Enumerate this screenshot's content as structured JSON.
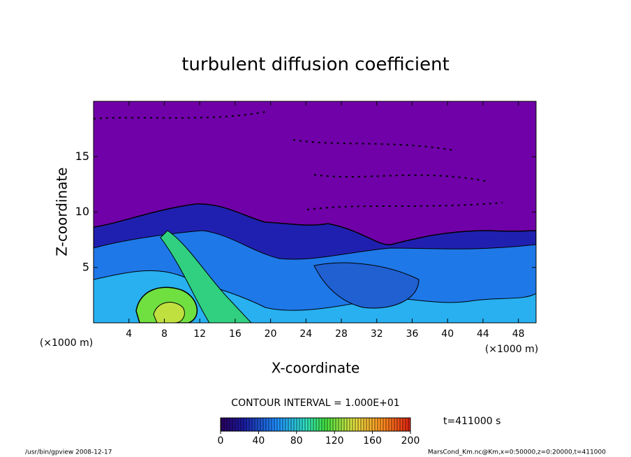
{
  "chart_data": {
    "type": "contour",
    "title": "turbulent diffusion coefficient",
    "x_label": "X-coordinate",
    "y_label": "Z-coordinate",
    "x_unit": "(×1000 m)",
    "xlim": [
      0,
      50
    ],
    "xticks": [
      4,
      8,
      12,
      16,
      20,
      24,
      28,
      32,
      36,
      40,
      44,
      48
    ],
    "ylim": [
      0,
      20
    ],
    "yticks": [
      5,
      10,
      15
    ],
    "contour_interval": "CONTOUR INTERVAL = 1.000E+01",
    "colorbar": {
      "lim": [
        0,
        200
      ],
      "ticks": [
        0,
        40,
        80,
        120,
        160,
        200
      ]
    },
    "time_label": "t=411000 s",
    "footer_left": "/usr/bin/gpview   2008-12-17",
    "footer_right": "MarsCond_Km.nc@Km,x=0:50000,z=0:20000,t=411000"
  }
}
